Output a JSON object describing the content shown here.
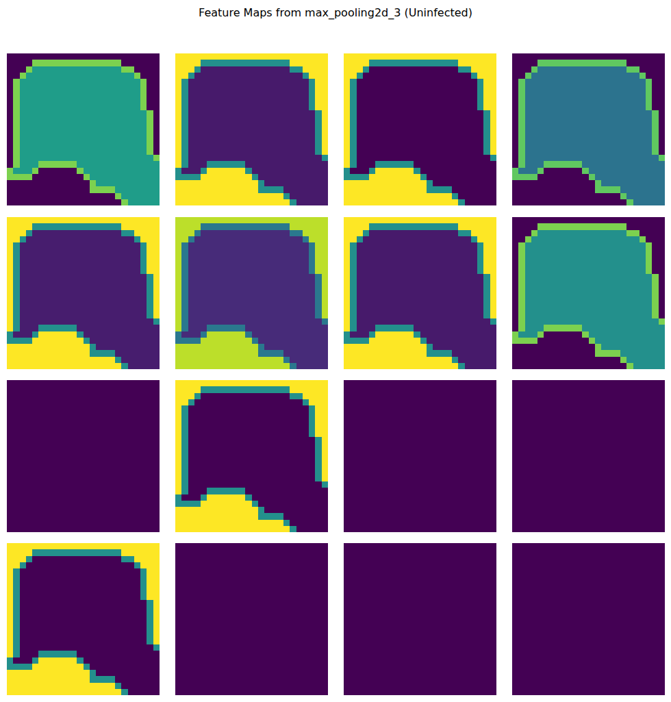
{
  "chart_data": {
    "type": "heatmap",
    "title": "Feature Maps from max_pooling2d_3 (Uninfected)",
    "tick_labels": false,
    "zlim": [
      0,
      1
    ],
    "mask": [
      [
        0,
        0,
        0,
        0,
        0,
        0,
        0,
        0,
        0,
        0,
        0,
        0,
        0,
        0,
        0,
        0,
        0,
        0,
        0,
        0,
        0,
        0,
        0,
        0
      ],
      [
        0,
        0,
        0,
        0,
        1,
        1,
        1,
        1,
        1,
        1,
        1,
        1,
        1,
        1,
        1,
        1,
        1,
        1,
        0,
        0,
        0,
        0,
        0,
        0
      ],
      [
        0,
        0,
        0,
        1,
        1,
        1,
        1,
        1,
        1,
        1,
        1,
        1,
        1,
        1,
        1,
        1,
        1,
        1,
        1,
        1,
        0,
        0,
        0,
        0
      ],
      [
        0,
        0,
        1,
        1,
        1,
        1,
        1,
        1,
        1,
        1,
        1,
        1,
        1,
        1,
        1,
        1,
        1,
        1,
        1,
        1,
        1,
        0,
        0,
        0
      ],
      [
        0,
        1,
        1,
        1,
        1,
        1,
        1,
        1,
        1,
        1,
        1,
        1,
        1,
        1,
        1,
        1,
        1,
        1,
        1,
        1,
        1,
        1,
        0,
        0
      ],
      [
        0,
        1,
        1,
        1,
        1,
        1,
        1,
        1,
        1,
        1,
        1,
        1,
        1,
        1,
        1,
        1,
        1,
        1,
        1,
        1,
        1,
        1,
        0,
        0
      ],
      [
        0,
        1,
        1,
        1,
        1,
        1,
        1,
        1,
        1,
        1,
        1,
        1,
        1,
        1,
        1,
        1,
        1,
        1,
        1,
        1,
        1,
        1,
        0,
        0
      ],
      [
        0,
        1,
        1,
        1,
        1,
        1,
        1,
        1,
        1,
        1,
        1,
        1,
        1,
        1,
        1,
        1,
        1,
        1,
        1,
        1,
        1,
        1,
        0,
        0
      ],
      [
        0,
        1,
        1,
        1,
        1,
        1,
        1,
        1,
        1,
        1,
        1,
        1,
        1,
        1,
        1,
        1,
        1,
        1,
        1,
        1,
        1,
        1,
        0,
        0
      ],
      [
        0,
        1,
        1,
        1,
        1,
        1,
        1,
        1,
        1,
        1,
        1,
        1,
        1,
        1,
        1,
        1,
        1,
        1,
        1,
        1,
        1,
        1,
        1,
        0
      ],
      [
        0,
        1,
        1,
        1,
        1,
        1,
        1,
        1,
        1,
        1,
        1,
        1,
        1,
        1,
        1,
        1,
        1,
        1,
        1,
        1,
        1,
        1,
        1,
        0
      ],
      [
        0,
        1,
        1,
        1,
        1,
        1,
        1,
        1,
        1,
        1,
        1,
        1,
        1,
        1,
        1,
        1,
        1,
        1,
        1,
        1,
        1,
        1,
        1,
        0
      ],
      [
        0,
        1,
        1,
        1,
        1,
        1,
        1,
        1,
        1,
        1,
        1,
        1,
        1,
        1,
        1,
        1,
        1,
        1,
        1,
        1,
        1,
        1,
        1,
        0
      ],
      [
        0,
        1,
        1,
        1,
        1,
        1,
        1,
        1,
        1,
        1,
        1,
        1,
        1,
        1,
        1,
        1,
        1,
        1,
        1,
        1,
        1,
        1,
        1,
        0
      ],
      [
        0,
        1,
        1,
        1,
        1,
        1,
        1,
        1,
        1,
        1,
        1,
        1,
        1,
        1,
        1,
        1,
        1,
        1,
        1,
        1,
        1,
        1,
        1,
        0
      ],
      [
        0,
        1,
        1,
        1,
        1,
        1,
        1,
        1,
        1,
        1,
        1,
        1,
        1,
        1,
        1,
        1,
        1,
        1,
        1,
        1,
        1,
        1,
        1,
        0
      ],
      [
        0,
        1,
        1,
        1,
        1,
        1,
        1,
        1,
        1,
        1,
        1,
        1,
        1,
        1,
        1,
        1,
        1,
        1,
        1,
        1,
        1,
        1,
        1,
        1
      ],
      [
        0,
        1,
        1,
        1,
        1,
        1,
        1,
        1,
        1,
        1,
        1,
        1,
        1,
        1,
        1,
        1,
        1,
        1,
        1,
        1,
        1,
        1,
        1,
        1
      ],
      [
        1,
        1,
        1,
        1,
        1,
        0,
        0,
        0,
        0,
        0,
        0,
        1,
        1,
        1,
        1,
        1,
        1,
        1,
        1,
        1,
        1,
        1,
        1,
        1
      ],
      [
        1,
        1,
        1,
        1,
        0,
        0,
        0,
        0,
        0,
        0,
        0,
        0,
        1,
        1,
        1,
        1,
        1,
        1,
        1,
        1,
        1,
        1,
        1,
        1
      ],
      [
        0,
        0,
        0,
        0,
        0,
        0,
        0,
        0,
        0,
        0,
        0,
        0,
        0,
        1,
        1,
        1,
        1,
        1,
        1,
        1,
        1,
        1,
        1,
        1
      ],
      [
        0,
        0,
        0,
        0,
        0,
        0,
        0,
        0,
        0,
        0,
        0,
        0,
        0,
        1,
        1,
        1,
        1,
        1,
        1,
        1,
        1,
        1,
        1,
        1
      ],
      [
        0,
        0,
        0,
        0,
        0,
        0,
        0,
        0,
        0,
        0,
        0,
        0,
        0,
        0,
        0,
        0,
        0,
        1,
        1,
        1,
        1,
        1,
        1,
        1
      ],
      [
        0,
        0,
        0,
        0,
        0,
        0,
        0,
        0,
        0,
        0,
        0,
        0,
        0,
        0,
        0,
        0,
        0,
        0,
        1,
        1,
        1,
        1,
        1,
        1
      ]
    ],
    "maps": [
      {
        "inside": 0.55,
        "edge": 0.8,
        "outside": 0
      },
      {
        "inside": 0.07,
        "edge": 0.5,
        "outside": 1
      },
      {
        "inside": 0,
        "edge": 0.5,
        "outside": 1
      },
      {
        "inside": 0.38,
        "edge": 0.75,
        "outside": 0
      },
      {
        "inside": 0.08,
        "edge": 0.5,
        "outside": 1
      },
      {
        "inside": 0.12,
        "edge": 0.4,
        "outside": 0.9
      },
      {
        "inside": 0.07,
        "edge": 0.5,
        "outside": 1
      },
      {
        "inside": 0.5,
        "edge": 0.8,
        "outside": 0
      },
      {
        "inside": 0,
        "edge": 0,
        "outside": 0
      },
      {
        "inside": 0,
        "edge": 0.5,
        "outside": 1
      },
      {
        "inside": 0,
        "edge": 0,
        "outside": 0
      },
      {
        "inside": 0,
        "edge": 0,
        "outside": 0
      },
      {
        "inside": 0,
        "edge": 0.5,
        "outside": 1
      },
      {
        "inside": 0,
        "edge": 0,
        "outside": 0
      },
      {
        "inside": 0,
        "edge": 0,
        "outside": 0
      },
      {
        "inside": 0,
        "edge": 0,
        "outside": 0
      }
    ]
  }
}
